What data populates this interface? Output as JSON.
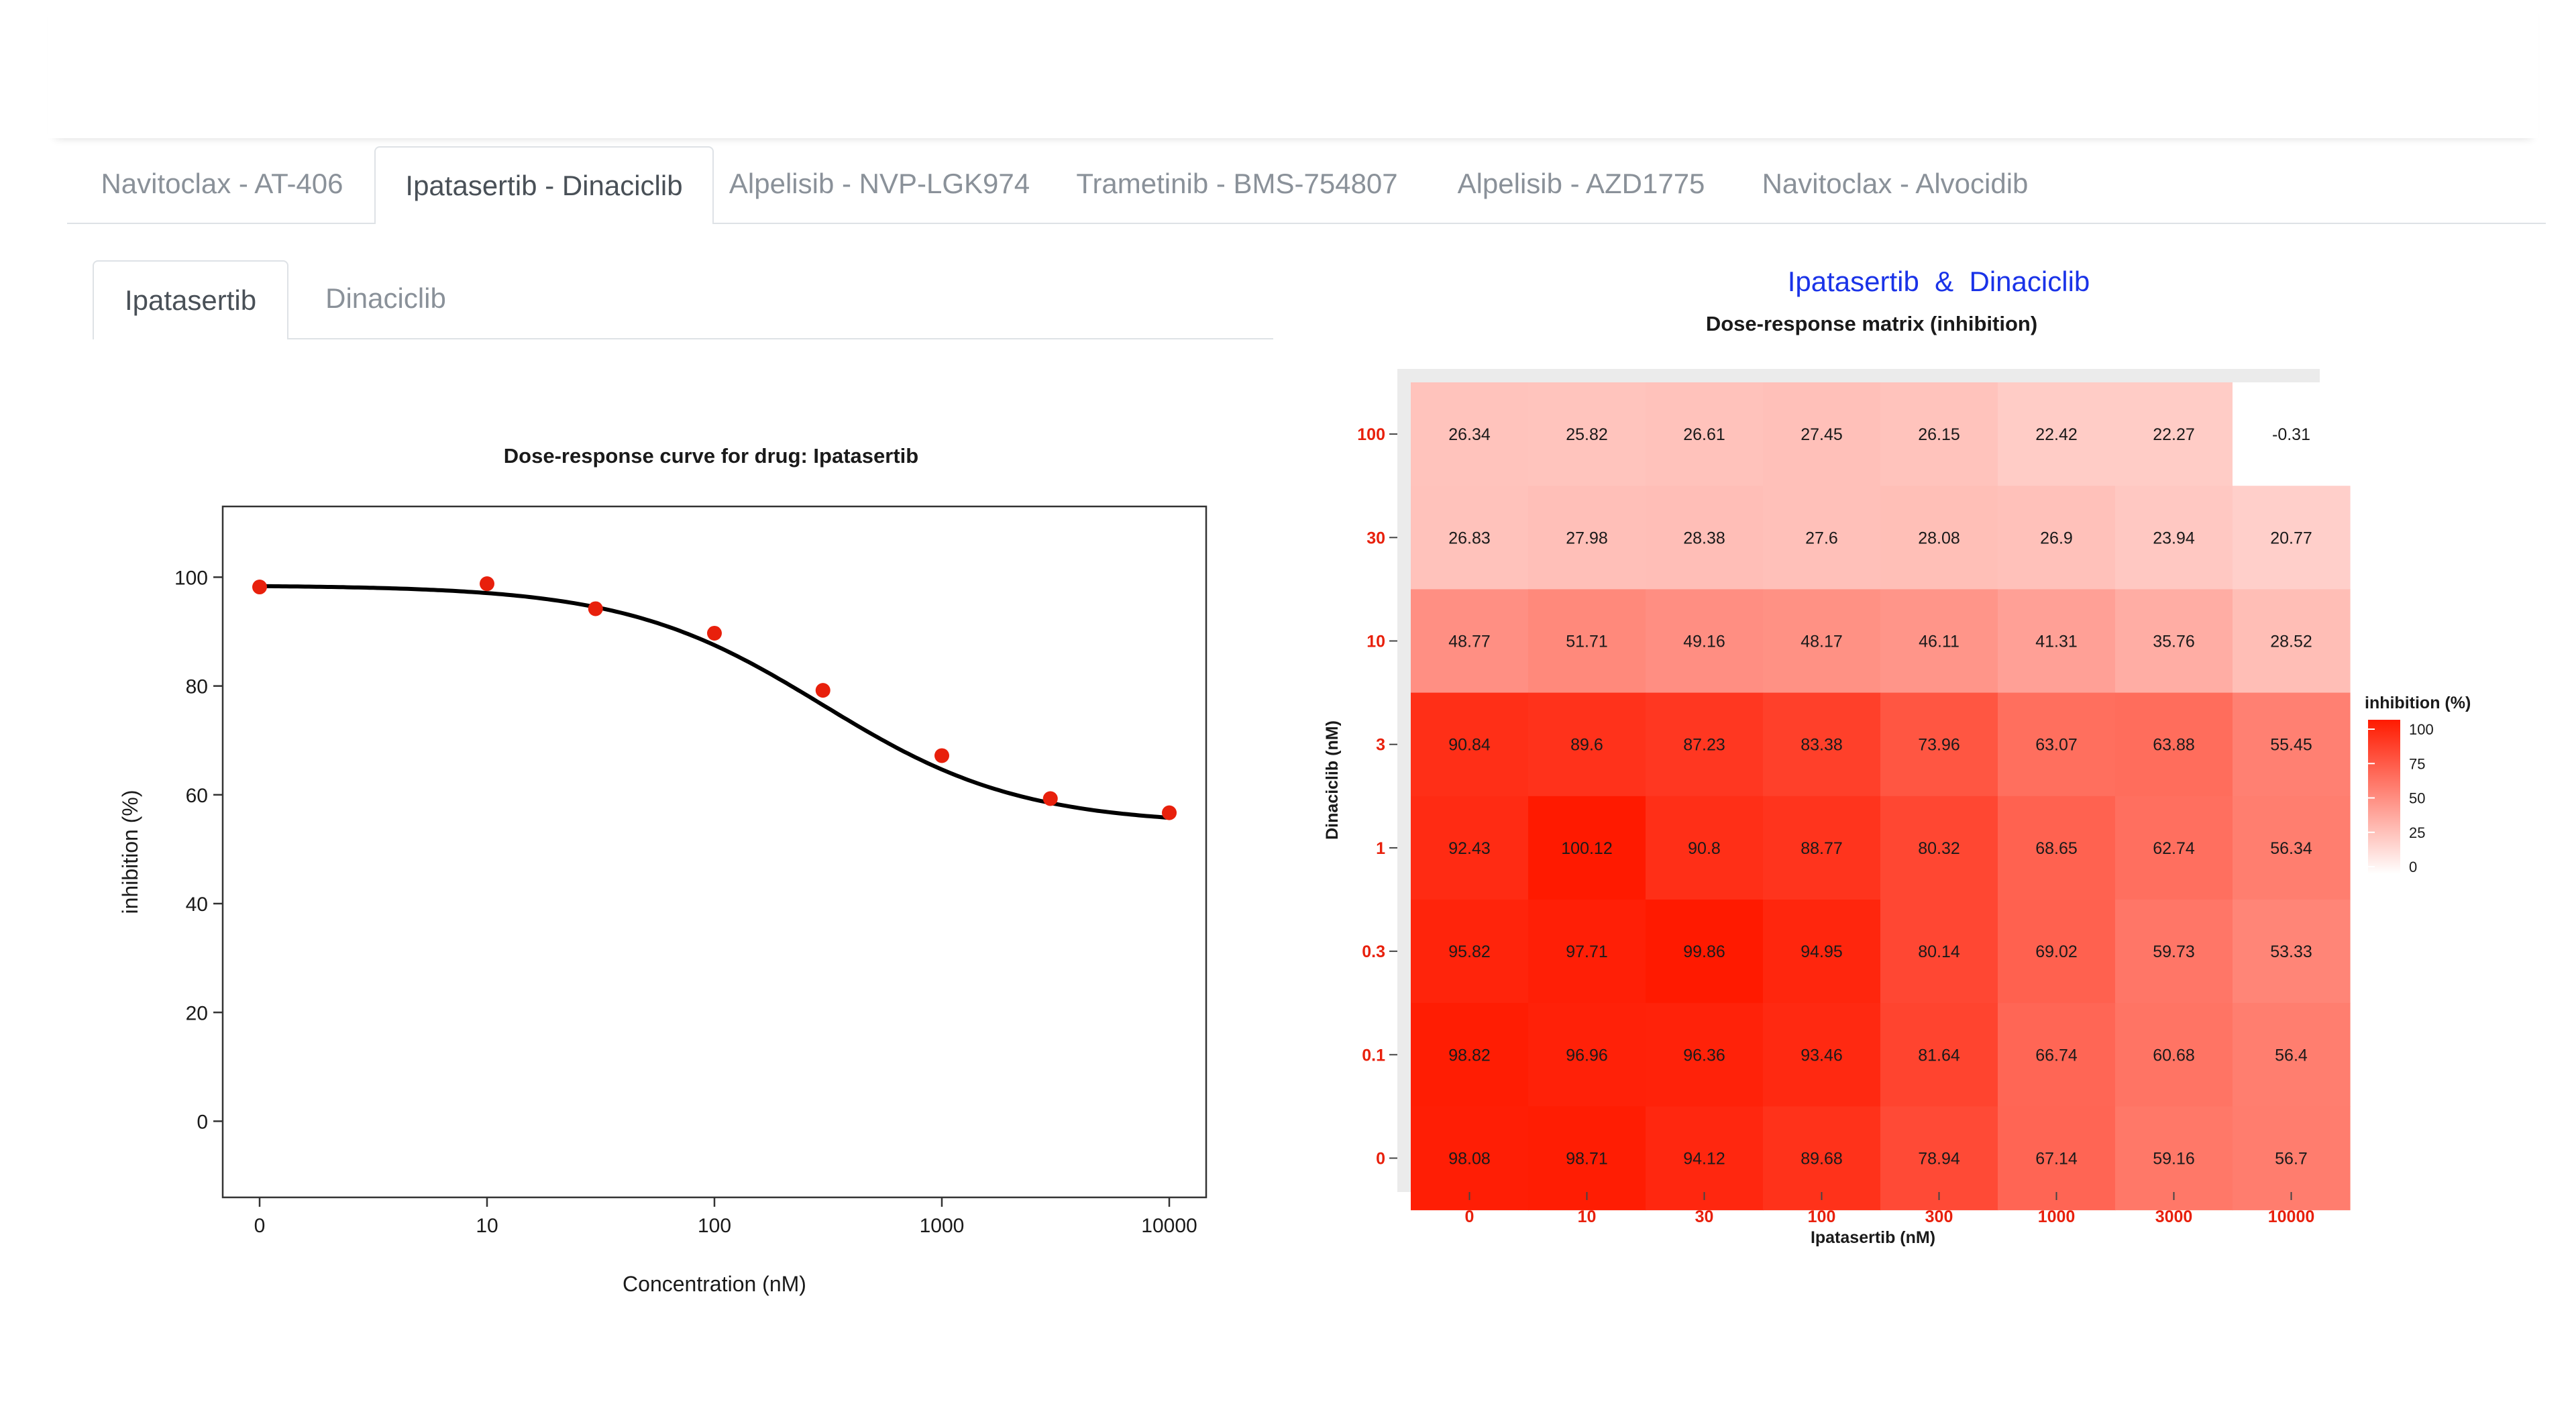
{
  "main_tabs": [
    {
      "label": "Navitoclax - AT-406",
      "active": false
    },
    {
      "label": "Ipatasertib - Dinaciclib",
      "active": true
    },
    {
      "label": "Alpelisib - NVP-LGK974",
      "active": false
    },
    {
      "label": "Trametinib - BMS-754807",
      "active": false
    },
    {
      "label": "Alpelisib - AZD1775",
      "active": false
    },
    {
      "label": "Navitoclax - Alvocidib",
      "active": false
    }
  ],
  "sub_tabs": [
    {
      "label": "Ipatasertib",
      "active": true
    },
    {
      "label": "Dinaciclib",
      "active": false
    }
  ],
  "colors": {
    "point": "#e8200c",
    "curve": "#000000",
    "heat_low": "#ffffff",
    "heat_high": "#ff1a00",
    "heat_title": "#1a33e8",
    "heat_tick": "#e8200c"
  },
  "chart_data": [
    {
      "type": "scatter",
      "title": "Dose-response curve for drug: Ipatasertib",
      "xlabel": "Concentration (nM)",
      "ylabel": "inhibition (%)",
      "x_scale": "log",
      "x_ticks": [
        "0",
        "10",
        "100",
        "1000",
        "10000"
      ],
      "y_ticks": [
        0,
        20,
        40,
        60,
        80,
        100
      ],
      "ylim": [
        -14,
        113
      ],
      "series": [
        {
          "x": [
            0,
            10,
            30,
            100,
            300,
            1000,
            3000,
            10000
          ],
          "y": [
            98.2,
            98.8,
            94.2,
            89.7,
            79.2,
            67.2,
            59.3,
            56.7
          ]
        }
      ],
      "fitted_curve": true,
      "grid": false
    },
    {
      "type": "heatmap",
      "title": "Ipatasertib  &  Dinaciclib",
      "subtitle": "Dose-response matrix (inhibition)",
      "xlabel": "Ipatasertib (nM)",
      "ylabel": "Dinaciclib (nM)",
      "x": [
        "0",
        "10",
        "30",
        "100",
        "300",
        "1000",
        "3000",
        "10000"
      ],
      "y": [
        "100",
        "30",
        "10",
        "3",
        "1",
        "0.3",
        "0.1",
        "0"
      ],
      "values": [
        [
          "26.34",
          "25.82",
          "26.61",
          "27.45",
          "26.15",
          "22.42",
          "22.27",
          "-0.31"
        ],
        [
          "26.83",
          "27.98",
          "28.38",
          "27.6",
          "28.08",
          "26.9",
          "23.94",
          "20.77"
        ],
        [
          "48.77",
          "51.71",
          "49.16",
          "48.17",
          "46.11",
          "41.31",
          "35.76",
          "28.52"
        ],
        [
          "90.84",
          "89.6",
          "87.23",
          "83.38",
          "73.96",
          "63.07",
          "63.88",
          "55.45"
        ],
        [
          "92.43",
          "100.12",
          "90.8",
          "88.77",
          "80.32",
          "68.65",
          "62.74",
          "56.34"
        ],
        [
          "95.82",
          "97.71",
          "99.86",
          "94.95",
          "80.14",
          "69.02",
          "59.73",
          "53.33"
        ],
        [
          "98.82",
          "96.96",
          "96.36",
          "93.46",
          "81.64",
          "66.74",
          "60.68",
          "56.4"
        ],
        [
          "98.08",
          "98.71",
          "94.12",
          "89.68",
          "78.94",
          "67.14",
          "59.16",
          "56.7"
        ]
      ],
      "legend": {
        "title": "inhibition (%)",
        "ticks": [
          "100",
          "75",
          "50",
          "25",
          "0"
        ],
        "position": "right"
      }
    }
  ]
}
